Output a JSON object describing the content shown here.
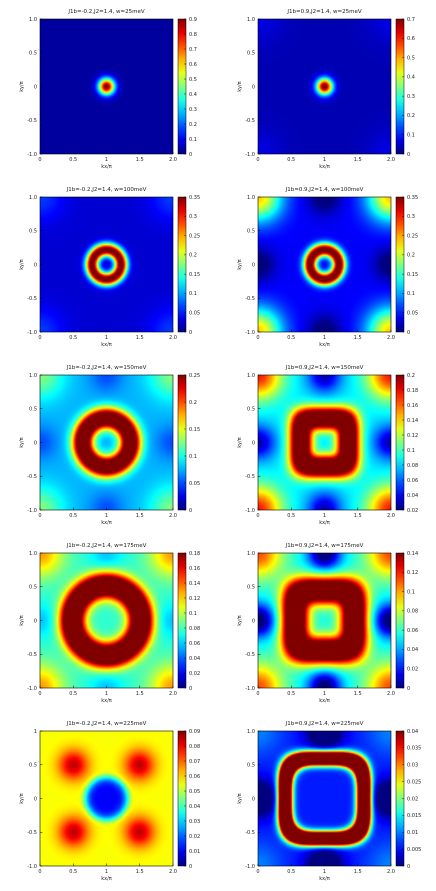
{
  "chart_data": [
    {
      "type": "heatmap",
      "title": "J1b=-0.2,J2=1.4, w=25meV",
      "xlabel": "kx/π",
      "ylabel": "ky/π",
      "xlim": [
        0,
        2
      ],
      "ylim": [
        -1,
        1
      ],
      "xticks": [
        "0",
        "0.5",
        "1",
        "1.5",
        "2.0"
      ],
      "yticks": [
        "1.0",
        "0.5",
        "0",
        "-0.5",
        "-1.0"
      ],
      "colorbar": {
        "min": 0,
        "max": 0.9,
        "ticks": [
          "0.9",
          "0.8",
          "0.7",
          "0.6",
          "0.5",
          "0.4",
          "0.3",
          "0.2",
          "0.1",
          "0"
        ]
      },
      "features": {
        "spot": 1,
        "ring": 0,
        "square": 0,
        "corners": 0,
        "cross": 0,
        "bg": 0.03,
        "rad": 0.09,
        "w": 0.06
      }
    },
    {
      "type": "heatmap",
      "title": "J1b=0.9,J2=1.4, w=25meV",
      "xlabel": "kx/π",
      "ylabel": "ky/π",
      "xlim": [
        0,
        2
      ],
      "ylim": [
        -1,
        1
      ],
      "xticks": [
        "0",
        "0.5",
        "1",
        "1.5",
        "2.0"
      ],
      "yticks": [
        "1.0",
        "0.5",
        "0",
        "-0.5",
        "-1.0"
      ],
      "colorbar": {
        "min": 0,
        "max": 0.7,
        "ticks": [
          "0.7",
          "0.6",
          "0.5",
          "0.4",
          "0.3",
          "0.2",
          "0.1",
          "0"
        ]
      },
      "features": {
        "spot": 1,
        "ring": 0,
        "square": 0,
        "corners": 0.05,
        "cross": 0,
        "bg": 0.05,
        "rad": 0.09,
        "w": 0.06
      }
    },
    {
      "type": "heatmap",
      "title": "J1b=-0.2,J2=1.4, w=100meV",
      "xlabel": "kx/π",
      "ylabel": "ky/π",
      "xlim": [
        0,
        2
      ],
      "ylim": [
        -1,
        1
      ],
      "xticks": [
        "0",
        "0.5",
        "1",
        "1.5",
        "2.0"
      ],
      "yticks": [
        "1.0",
        "0.5",
        "0",
        "-0.5",
        "-1.0"
      ],
      "colorbar": {
        "min": 0,
        "max": 0.35,
        "ticks": [
          "0.35",
          "0.3",
          "0.25",
          "0.2",
          "0.15",
          "0.1",
          "0.05",
          "0"
        ]
      },
      "features": {
        "spot": 0,
        "ring": 1,
        "square": 0,
        "corners": 0.1,
        "cross": 0,
        "bg": 0.08,
        "rad": 0.22,
        "w": 0.07
      }
    },
    {
      "type": "heatmap",
      "title": "J1b=0.9,J2=1.4, w=100meV",
      "xlabel": "kx/π",
      "ylabel": "ky/π",
      "xlim": [
        0,
        2
      ],
      "ylim": [
        -1,
        1
      ],
      "xticks": [
        "0",
        "0.5",
        "1",
        "1.5",
        "2.0"
      ],
      "yticks": [
        "1.0",
        "0.5",
        "0",
        "-0.5",
        "-1.0"
      ],
      "colorbar": {
        "min": 0,
        "max": 0.35,
        "ticks": [
          "0.35",
          "0.3",
          "0.25",
          "0.2",
          "0.15",
          "0.1",
          "0.05",
          "0"
        ]
      },
      "features": {
        "spot": 0,
        "ring": 1,
        "square": 0,
        "corners": 0.55,
        "cross": 0.15,
        "bg": 0.12,
        "rad": 0.22,
        "w": 0.07
      }
    },
    {
      "type": "heatmap",
      "title": "J1b=-0.2,J2=1.4, w=150meV",
      "xlabel": "kx/π",
      "ylabel": "ky/π",
      "xlim": [
        0,
        2
      ],
      "ylim": [
        -1,
        1
      ],
      "xticks": [
        "0",
        "0.5",
        "1",
        "1.5",
        "2.0"
      ],
      "yticks": [
        "1.0",
        "0.5",
        "0",
        "-0.5",
        "-1.0"
      ],
      "colorbar": {
        "min": 0,
        "max": 0.25,
        "ticks": [
          "0.25",
          "0.2",
          "0.15",
          "0.1",
          "0.05",
          "0"
        ]
      },
      "features": {
        "spot": 0,
        "ring": 1,
        "square": 0,
        "corners": 0.2,
        "cross": 0.1,
        "bg": 0.3,
        "rad": 0.36,
        "w": 0.11
      }
    },
    {
      "type": "heatmap",
      "title": "J1b=0.9,J2=1.4, w=150meV",
      "xlabel": "kx/π",
      "ylabel": "ky/π",
      "xlim": [
        0,
        2
      ],
      "ylim": [
        -1,
        1
      ],
      "xticks": [
        "0",
        "0.5",
        "1",
        "1.5",
        "2.0"
      ],
      "yticks": [
        "1.0",
        "0.5",
        "0",
        "-0.5",
        "-1.0"
      ],
      "colorbar": {
        "min": 0,
        "max": 0.2,
        "ticks": [
          "0.2",
          "0.18",
          "0.16",
          "0.14",
          "0.12",
          "0.1",
          "0.08",
          "0.06",
          "0.04",
          "0.02"
        ]
      },
      "features": {
        "spot": 0,
        "ring": 0,
        "square": 1,
        "corners": 0.5,
        "cross": 0.3,
        "bg": 0.35,
        "rad": 0.36,
        "w": 0.12
      }
    },
    {
      "type": "heatmap",
      "title": "J1b=-0.2,J2=1.4, w=175meV",
      "xlabel": "kx/π",
      "ylabel": "ky/π",
      "xlim": [
        0,
        2
      ],
      "ylim": [
        -1,
        1
      ],
      "xticks": [
        "0",
        "0.5",
        "1",
        "1.5",
        "2.0"
      ],
      "yticks": [
        "1.0",
        "0.5",
        "0",
        "-0.5",
        "-1.0"
      ],
      "colorbar": {
        "min": 0,
        "max": 0.18,
        "ticks": [
          "0.18",
          "0.16",
          "0.14",
          "0.12",
          "0.1",
          "0.08",
          "0.06",
          "0.04",
          "0.02",
          "0"
        ]
      },
      "features": {
        "spot": 0,
        "ring": 1,
        "square": 0,
        "corners": 0.3,
        "cross": 0.1,
        "bg": 0.42,
        "rad": 0.52,
        "w": 0.13
      }
    },
    {
      "type": "heatmap",
      "title": "J1b=0.9,J2=1.4, w=175meV",
      "xlabel": "kx/π",
      "ylabel": "ky/π",
      "xlim": [
        0,
        2
      ],
      "ylim": [
        -1,
        1
      ],
      "xticks": [
        "0",
        "0.5",
        "1",
        "1.5",
        "2.0"
      ],
      "yticks": [
        "1.0",
        "0.5",
        "0",
        "-0.5",
        "-1.0"
      ],
      "colorbar": {
        "min": 0,
        "max": 0.14,
        "ticks": [
          "0.14",
          "0.12",
          "0.1",
          "0.08",
          "0.06",
          "0.04",
          "0.02",
          "0"
        ]
      },
      "features": {
        "spot": 0,
        "ring": 0,
        "square": 1,
        "corners": 0.4,
        "cross": 0.45,
        "bg": 0.4,
        "rad": 0.45,
        "w": 0.14
      }
    },
    {
      "type": "heatmap",
      "title": "J1b=-0.2,J2=1.4, w=225meV",
      "xlabel": "kx/π",
      "ylabel": "ky/π",
      "xlim": [
        0,
        2
      ],
      "ylim": [
        -1,
        1
      ],
      "xticks": [
        "0",
        "0.5",
        "1",
        "1.5",
        "2.0"
      ],
      "yticks": [
        "1",
        "0.5",
        "0",
        "-0.5",
        "-1.0"
      ],
      "colorbar": {
        "min": 0,
        "max": 0.09,
        "ticks": [
          "0.09",
          "0.08",
          "0.07",
          "0.06",
          "0.05",
          "0.04",
          "0.03",
          "0.02",
          "0.01",
          "0"
        ]
      },
      "features": {
        "spot": 0,
        "ring": 0,
        "square": 0,
        "corners": 0,
        "cross": 0,
        "bg": 0.7,
        "rad": 0.32,
        "w": 0.14,
        "hole": 1,
        "lobes": 1
      }
    },
    {
      "type": "heatmap",
      "title": "J1b=0.9,J2=1.4, w=225meV",
      "xlabel": "kx/π",
      "ylabel": "ky/π",
      "xlim": [
        0,
        2
      ],
      "ylim": [
        -1,
        1
      ],
      "xticks": [
        "0",
        "0.5",
        "1",
        "1.5",
        "2.0"
      ],
      "yticks": [
        "1.0",
        "0.5",
        "0",
        "-0.5",
        "-1.0"
      ],
      "colorbar": {
        "min": 0,
        "max": 0.04,
        "ticks": [
          "0.04",
          "0.035",
          "0.03",
          "0.025",
          "0.02",
          "0.015",
          "0.01",
          "0.005",
          "0"
        ]
      },
      "features": {
        "spot": 0,
        "ring": 0,
        "square": 1,
        "corners": 0.1,
        "cross": 0.35,
        "bg": 0.15,
        "rad": 0.6,
        "w": 0.07,
        "arcs": 1
      }
    }
  ]
}
